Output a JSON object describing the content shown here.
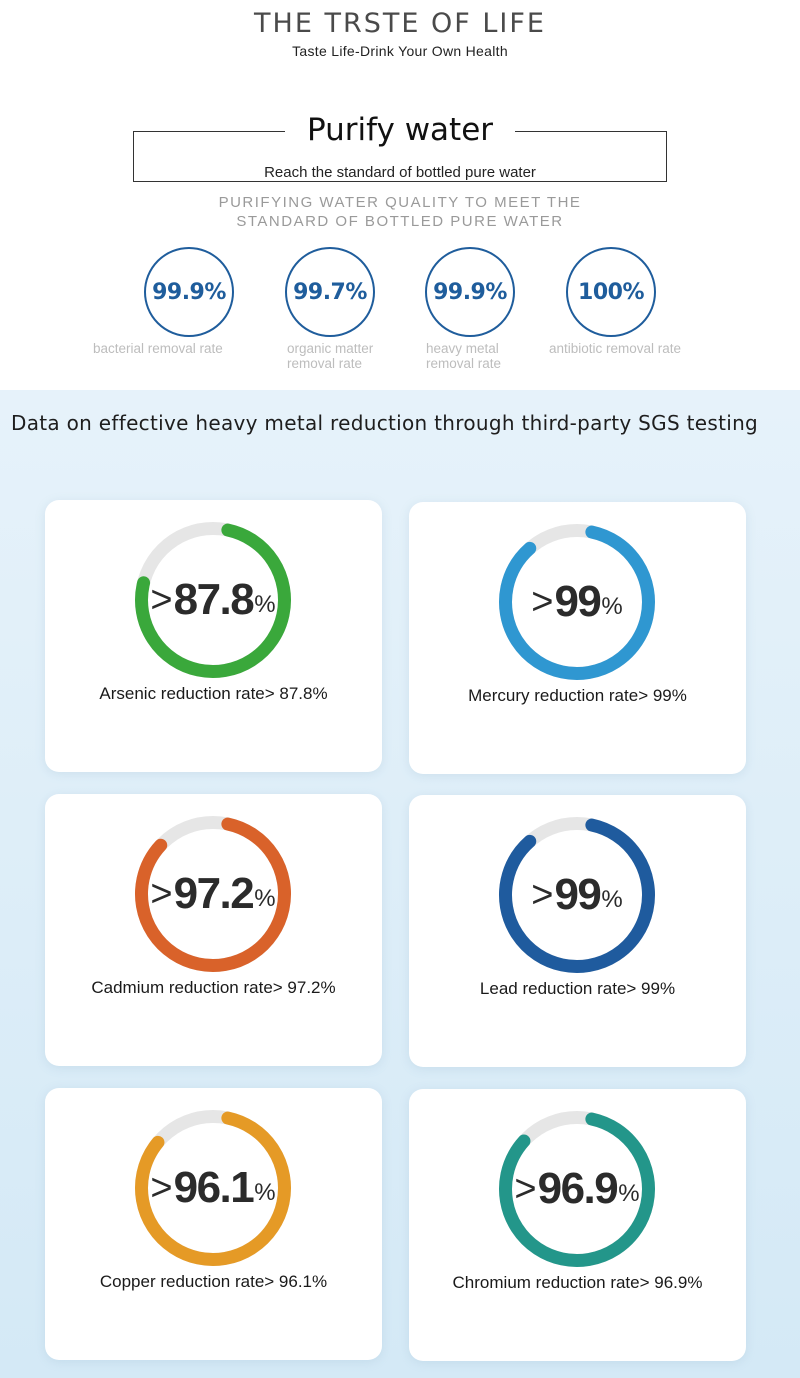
{
  "header": {
    "brand_title": "THE TRSTE OF LIFE",
    "brand_subtitle": "Taste Life-Drink Your Own Health"
  },
  "purify": {
    "title": "Purify water",
    "subtitle": "Reach the standard of bottled pure water",
    "caps_line1": "PURIFYING WATER QUALITY TO MEET THE",
    "caps_line2": "STANDARD OF BOTTLED PURE WATER"
  },
  "stats": [
    {
      "value": "99.9%",
      "label1": "bacterial removal rate",
      "label2": ""
    },
    {
      "value": "99.7%",
      "label1": "organic matter",
      "label2": "removal rate"
    },
    {
      "value": "99.9%",
      "label1": "heavy metal",
      "label2": "removal rate"
    },
    {
      "value": "100%",
      "label1": "antibiotic removal rate",
      "label2": ""
    }
  ],
  "stat_color": "#1f5d9c",
  "sgs": {
    "title": "Data on effective heavy metal reduction through third-party SGS testing",
    "cards": [
      {
        "symbol": ">",
        "value": "87.8",
        "unit": "%",
        "label": "Arsenic reduction rate> 87.8%",
        "fill_fraction": 0.878,
        "color": "#3aa83b"
      },
      {
        "symbol": ">",
        "value": "99",
        "unit": "%",
        "label": "Mercury reduction rate> 99%",
        "fill_fraction": 0.99,
        "color": "#2f97d1"
      },
      {
        "symbol": ">",
        "value": "97.2",
        "unit": "%",
        "label": "Cadmium reduction rate> 97.2%",
        "fill_fraction": 0.972,
        "color": "#d9622a"
      },
      {
        "symbol": ">",
        "value": "99",
        "unit": "%",
        "label": "Lead reduction rate> 99%",
        "fill_fraction": 0.99,
        "color": "#1f5b9e"
      },
      {
        "symbol": ">",
        "value": "96.1",
        "unit": "%",
        "label": "Copper reduction rate> 96.1%",
        "fill_fraction": 0.961,
        "color": "#e59a26"
      },
      {
        "symbol": ">",
        "value": "96.9",
        "unit": "%",
        "label": "Chromium reduction rate> 96.9%",
        "fill_fraction": 0.969,
        "color": "#23968a"
      }
    ]
  },
  "ring_track_color": "#e6e6e6"
}
